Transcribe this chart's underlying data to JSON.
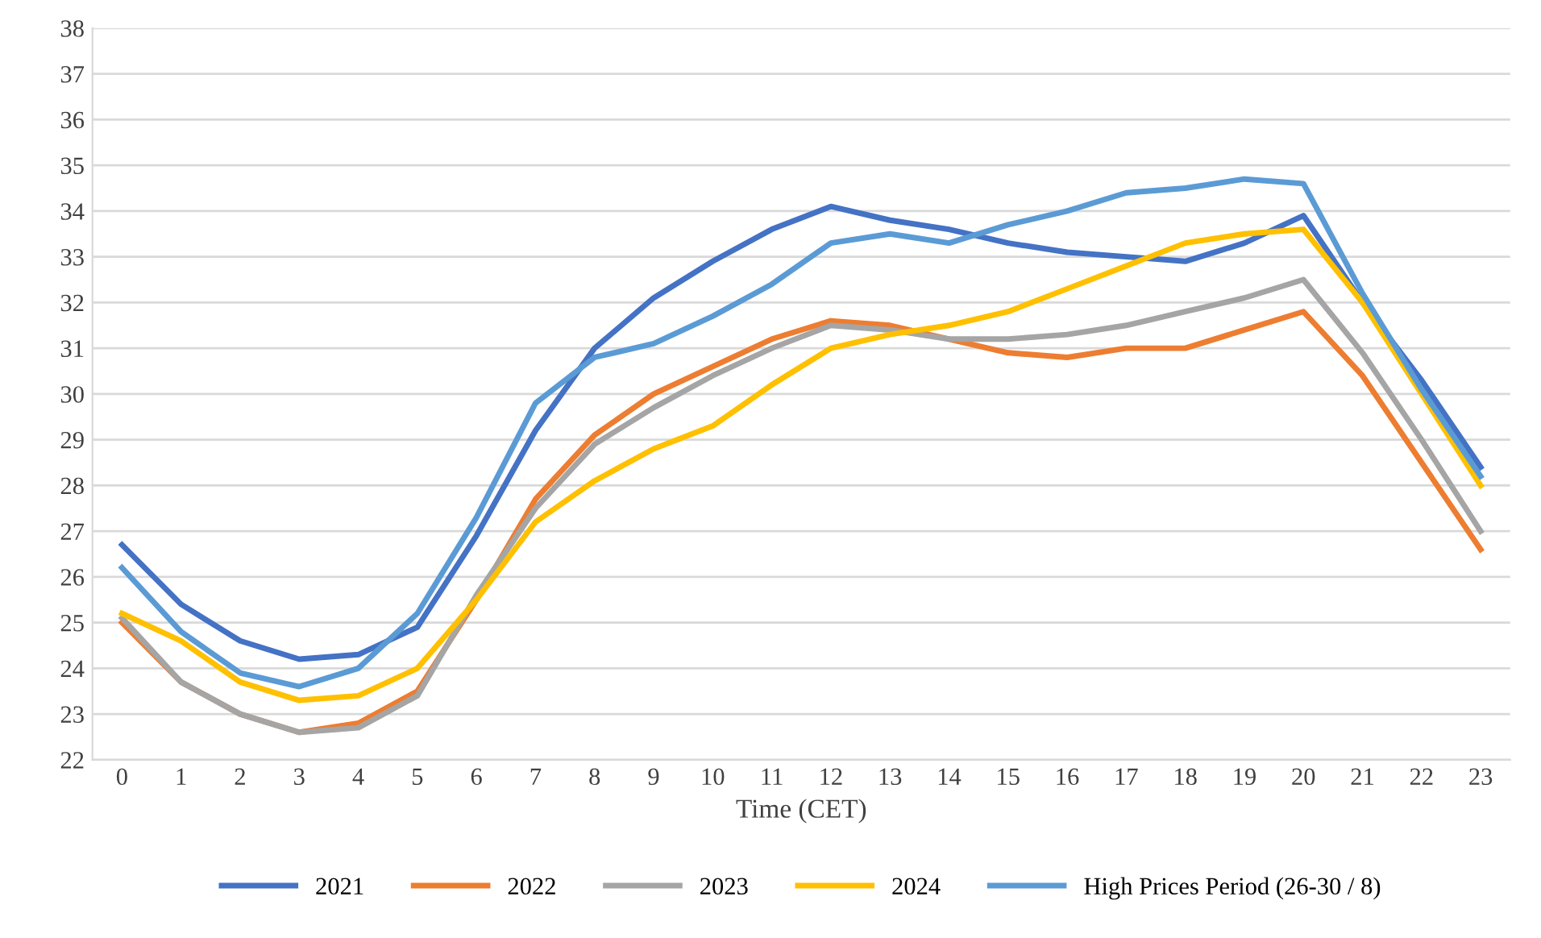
{
  "chart_data": {
    "type": "line",
    "xlabel": "Time (CET)",
    "categories": [
      "0",
      "1",
      "2",
      "3",
      "4",
      "5",
      "6",
      "7",
      "8",
      "9",
      "10",
      "11",
      "12",
      "13",
      "14",
      "15",
      "16",
      "17",
      "18",
      "19",
      "20",
      "21",
      "22",
      "23"
    ],
    "ylim": [
      22,
      38
    ],
    "yticks": [
      22,
      23,
      24,
      25,
      26,
      27,
      28,
      29,
      30,
      31,
      32,
      33,
      34,
      35,
      36,
      37,
      38
    ],
    "grid": "y",
    "legend": "bottom",
    "marker": "none",
    "line_style": "solid",
    "series": [
      {
        "name": "2021",
        "color": "#4472c4",
        "values": [
          26.7,
          25.4,
          24.6,
          24.2,
          24.3,
          24.9,
          26.9,
          29.2,
          31.0,
          32.1,
          32.9,
          33.6,
          34.1,
          33.8,
          33.6,
          33.3,
          33.1,
          33.0,
          32.9,
          33.3,
          33.9,
          32.0,
          30.3,
          28.4
        ]
      },
      {
        "name": "2022",
        "color": "#ed7d31",
        "values": [
          25.0,
          23.7,
          23.0,
          22.6,
          22.8,
          23.5,
          25.5,
          27.7,
          29.1,
          30.0,
          30.6,
          31.2,
          31.6,
          31.5,
          31.2,
          30.9,
          30.8,
          31.0,
          31.0,
          31.4,
          31.8,
          30.4,
          28.5,
          26.6
        ]
      },
      {
        "name": "2023",
        "color": "#a5a5a5",
        "values": [
          25.1,
          23.7,
          23.0,
          22.6,
          22.7,
          23.4,
          25.6,
          27.5,
          28.9,
          29.7,
          30.4,
          31.0,
          31.5,
          31.4,
          31.2,
          31.2,
          31.3,
          31.5,
          31.8,
          32.1,
          32.5,
          30.9,
          29.0,
          27.0
        ]
      },
      {
        "name": "2024",
        "color": "#ffc000",
        "values": [
          25.2,
          24.6,
          23.7,
          23.3,
          23.4,
          24.0,
          25.5,
          27.2,
          28.1,
          28.8,
          29.3,
          30.2,
          31.0,
          31.3,
          31.5,
          31.8,
          32.3,
          32.8,
          33.3,
          33.5,
          33.6,
          32.0,
          30.0,
          28.0
        ]
      },
      {
        "name": "High Prices Period (26-30 / 8)",
        "color": "#5b9bd5",
        "values": [
          26.2,
          24.8,
          23.9,
          23.6,
          24.0,
          25.2,
          27.3,
          29.8,
          30.8,
          31.1,
          31.7,
          32.4,
          33.3,
          33.5,
          33.3,
          33.7,
          34.0,
          34.4,
          34.5,
          34.7,
          34.6,
          32.2,
          30.1,
          28.2
        ]
      }
    ]
  }
}
